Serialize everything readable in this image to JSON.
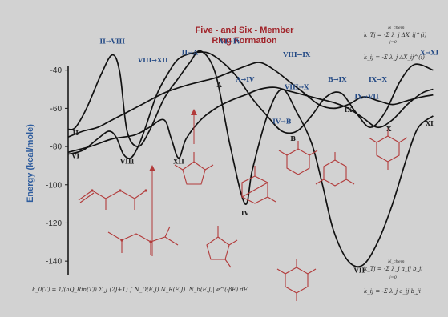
{
  "chart_data": {
    "type": "line",
    "title": "Five - and Six - Member\nRing Formation",
    "title_lines": [
      "Five - and Six - Member",
      "Ring Formation"
    ],
    "xlabel": "",
    "ylabel": "Energy (kcal/mole)",
    "yticks": [
      -40,
      -60,
      -80,
      -100,
      -120,
      -140
    ],
    "ylim": [
      -150,
      -20
    ],
    "xlim": [
      0,
      100
    ],
    "grid": false,
    "series": [
      {
        "x": [
          0,
          2,
          5,
          9,
          12,
          14,
          16,
          19,
          22,
          26,
          30,
          33,
          36,
          40,
          44,
          48,
          50,
          54,
          58,
          62,
          66,
          69,
          72,
          76,
          80,
          84,
          88,
          92,
          95,
          99
        ],
        "y": [
          -71,
          -70,
          -60,
          -42,
          -32,
          -41,
          -72,
          -80,
          -72,
          -55,
          -44,
          -36,
          -30,
          -42,
          -80,
          -110,
          -92,
          -64,
          -50,
          -62,
          -78,
          -100,
          -124,
          -140,
          -142,
          -130,
          -110,
          -85,
          -70,
          -64
        ]
      },
      {
        "x": [
          0,
          4,
          8,
          11,
          13,
          15,
          17,
          19,
          21,
          24,
          27,
          30,
          34,
          38,
          42,
          46,
          50,
          54,
          58,
          62,
          66,
          70,
          74,
          78,
          82,
          86,
          90,
          94,
          99
        ],
        "y": [
          -84,
          -82,
          -76,
          -72,
          -75,
          -84,
          -86,
          -80,
          -70,
          -53,
          -42,
          -34,
          -31,
          -31,
          -36,
          -44,
          -55,
          -64,
          -72,
          -72,
          -64,
          -54,
          -52,
          -62,
          -70,
          -62,
          -46,
          -37,
          -40
        ]
      },
      {
        "x": [
          0,
          4,
          8,
          12,
          16,
          20,
          26,
          32,
          36,
          40,
          44,
          48,
          52,
          56,
          60,
          64,
          68,
          72,
          76,
          80,
          84,
          88,
          92,
          96,
          99
        ],
        "y": [
          -75,
          -72,
          -70,
          -66,
          -62,
          -58,
          -52,
          -48,
          -46,
          -44,
          -41,
          -38,
          -36,
          -40,
          -46,
          -52,
          -58,
          -60,
          -58,
          -54,
          -56,
          -58,
          -56,
          -54,
          -53
        ]
      },
      {
        "x": [
          0,
          6,
          12,
          18,
          22,
          26,
          28,
          30,
          32,
          36,
          40,
          44,
          48,
          52,
          56,
          60,
          64,
          68,
          72,
          76,
          80,
          84,
          88,
          92,
          96,
          99
        ],
        "y": [
          -83,
          -80,
          -76,
          -74,
          -70,
          -66,
          -76,
          -86,
          -76,
          -66,
          -60,
          -56,
          -53,
          -50,
          -49,
          -51,
          -53,
          -55,
          -57,
          -60,
          -65,
          -70,
          -66,
          -58,
          -52,
          -50
        ]
      }
    ],
    "state_labels": [
      {
        "label": "II",
        "x": 2,
        "y": -74
      },
      {
        "label": "II→VIII",
        "x": 12,
        "y": -26
      },
      {
        "label": "VIII→XII",
        "x": 23,
        "y": -36
      },
      {
        "label": "II→A",
        "x": 33,
        "y": -32
      },
      {
        "label": "VI→IV",
        "x": 44,
        "y": -26
      },
      {
        "label": "VIII→IX",
        "x": 62,
        "y": -33
      },
      {
        "label": "A→IV",
        "x": 48,
        "y": -46
      },
      {
        "label": "A",
        "x": 41,
        "y": -49
      },
      {
        "label": "B→IX",
        "x": 73,
        "y": -46
      },
      {
        "label": "IX→X",
        "x": 84,
        "y": -46
      },
      {
        "label": "X→XI",
        "x": 98,
        "y": -32
      },
      {
        "label": "VIII→X",
        "x": 62,
        "y": -50
      },
      {
        "label": "IX→VII",
        "x": 81,
        "y": -55
      },
      {
        "label": "IX",
        "x": 76,
        "y": -62
      },
      {
        "label": "IV→B",
        "x": 58,
        "y": -68
      },
      {
        "label": "B",
        "x": 61,
        "y": -77
      },
      {
        "label": "VI",
        "x": 2,
        "y": -86
      },
      {
        "label": "VIII",
        "x": 16,
        "y": -89
      },
      {
        "label": "XII",
        "x": 30,
        "y": -89
      },
      {
        "label": "X",
        "x": 87,
        "y": -72
      },
      {
        "label": "XI",
        "x": 98,
        "y": -69
      },
      {
        "label": "IV",
        "x": 48,
        "y": -116
      },
      {
        "label": "VII",
        "x": 79,
        "y": -146
      }
    ]
  },
  "equations": {
    "top_1": "k_Tj = -Σ λ_j ΔX_ij^(i)",
    "top_2": "k_ij = -Σ λ_j ΔX_ij^(i)",
    "bottom_1": "k_Tj = -Σ λ_j a_ij b_ji",
    "bottom_2": "k_ij = -Σ λ_j a_ij b_ji",
    "rate": "k_0(T) = 1/(hQ_Rin(T)) Σ_J (2J+1) ∫ N_D(E,J) N_R(E,J) |N_b(E,J)| e^(-βE) dE",
    "sum_top": "N_chem",
    "sum_bottom": "j=0"
  }
}
